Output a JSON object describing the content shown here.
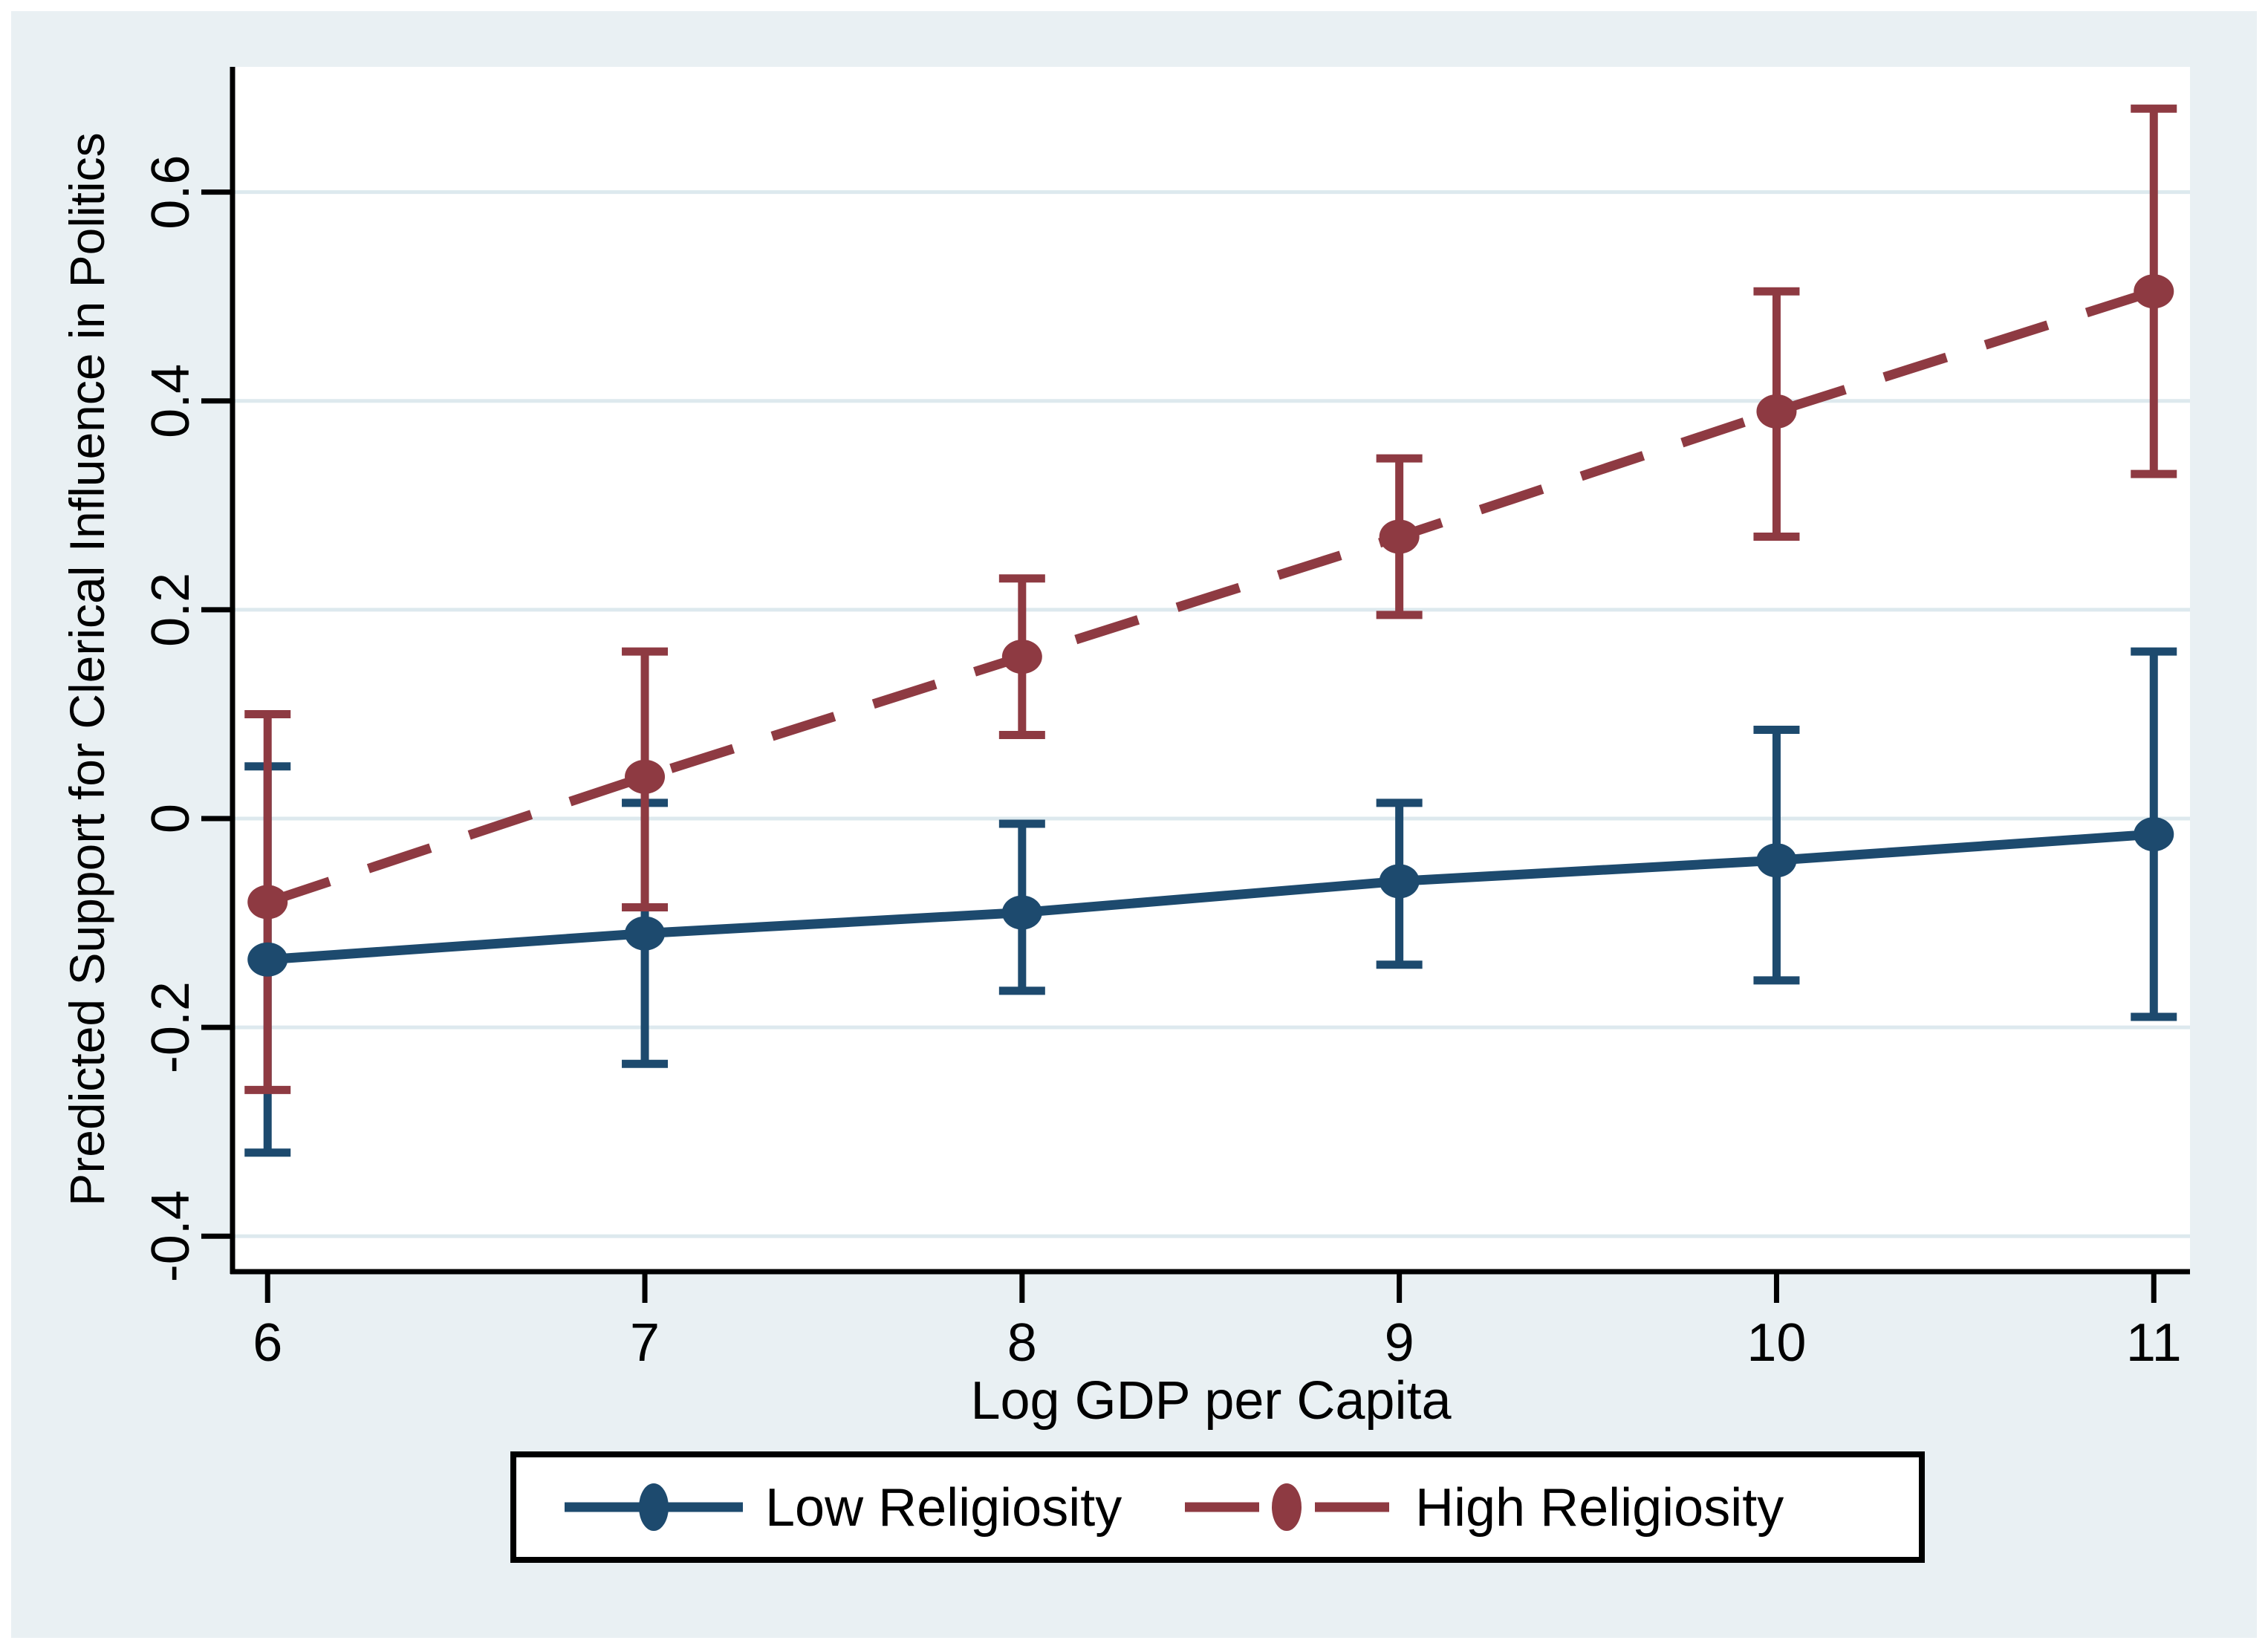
{
  "figure": {
    "page_bg": "#ffffff",
    "region_bg": "#e9f0f3",
    "plot_bg": "#ffffff",
    "grid_color": "#dde9ee",
    "axis_color": "#000000",
    "text_color": "#000000",
    "legend_bg": "#ffffff",
    "legend_border": "#000000"
  },
  "chart_data": {
    "type": "line",
    "title": "",
    "xlabel": "Log GDP per Capita",
    "ylabel": "Predicted Support for Clerical Influence in Politics",
    "x": [
      6,
      7,
      8,
      9,
      10,
      11
    ],
    "xticks": [
      6,
      7,
      8,
      9,
      10,
      11
    ],
    "xtick_labels": [
      "6",
      "7",
      "8",
      "9",
      "10",
      "11"
    ],
    "yticks": [
      -0.4,
      -0.2,
      0,
      0.2,
      0.4,
      0.6
    ],
    "ytick_labels": [
      "-0.4",
      "-0.2",
      "0",
      "0.2",
      "0.4",
      "0.6"
    ],
    "xlim": [
      5.907,
      11.096
    ],
    "ylim": [
      -0.434,
      0.72
    ],
    "grid": true,
    "legend_position": "bottom",
    "series": [
      {
        "name": "Low Religiosity",
        "color": "#1d4a6e",
        "line_style": "solid",
        "marker": "circle",
        "values": [
          -0.135,
          -0.11,
          -0.09,
          -0.06,
          -0.04,
          -0.015
        ],
        "ci_low": [
          -0.32,
          -0.235,
          -0.165,
          -0.14,
          -0.155,
          -0.19
        ],
        "ci_high": [
          0.05,
          0.015,
          -0.005,
          0.015,
          0.085,
          0.16
        ]
      },
      {
        "name": "High Religiosity",
        "color": "#8e3a42",
        "line_style": "dashed",
        "marker": "circle",
        "values": [
          -0.08,
          0.04,
          0.155,
          0.27,
          0.39,
          0.505
        ],
        "ci_low": [
          -0.26,
          -0.085,
          0.08,
          0.195,
          0.27,
          0.33
        ],
        "ci_high": [
          0.1,
          0.16,
          0.23,
          0.345,
          0.505,
          0.68
        ]
      }
    ]
  }
}
